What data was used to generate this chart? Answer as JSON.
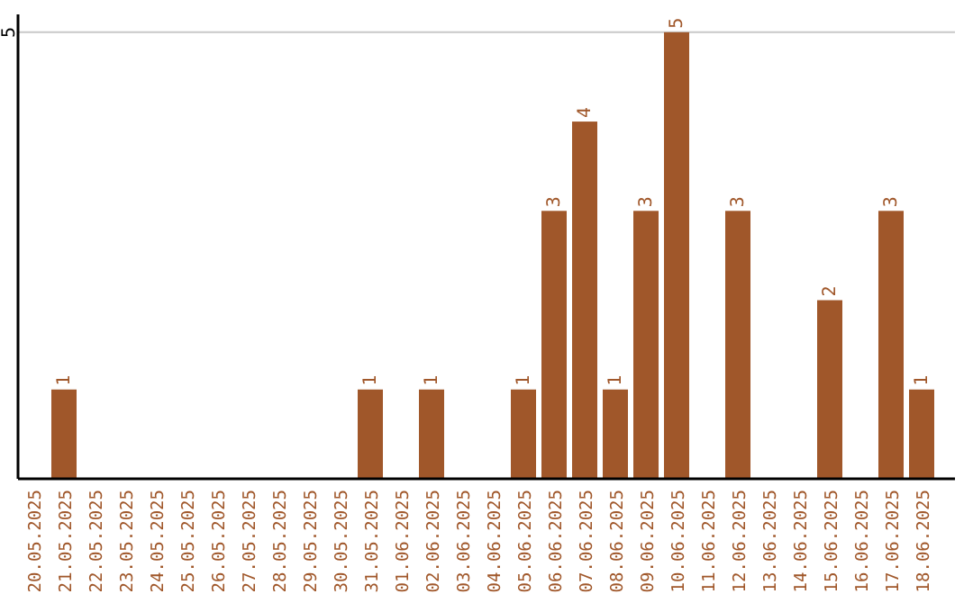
{
  "chart_data": {
    "type": "bar",
    "categories": [
      "20.05.2025",
      "21.05.2025",
      "22.05.2025",
      "23.05.2025",
      "24.05.2025",
      "25.05.2025",
      "26.05.2025",
      "27.05.2025",
      "28.05.2025",
      "29.05.2025",
      "30.05.2025",
      "31.05.2025",
      "01.06.2025",
      "02.06.2025",
      "03.06.2025",
      "04.06.2025",
      "05.06.2025",
      "06.06.2025",
      "07.06.2025",
      "08.06.2025",
      "09.06.2025",
      "10.06.2025",
      "11.06.2025",
      "12.06.2025",
      "13.06.2025",
      "14.06.2025",
      "15.06.2025",
      "16.06.2025",
      "17.06.2025",
      "18.06.2025"
    ],
    "values": [
      0,
      1,
      0,
      0,
      0,
      0,
      0,
      0,
      0,
      0,
      0,
      1,
      0,
      1,
      0,
      0,
      1,
      3,
      4,
      1,
      3,
      5,
      0,
      3,
      0,
      0,
      2,
      0,
      3,
      1
    ],
    "value_labels": [
      null,
      "1",
      null,
      null,
      null,
      null,
      null,
      null,
      null,
      null,
      null,
      "1",
      null,
      "1",
      null,
      null,
      "1",
      "3",
      "4",
      "1",
      "3",
      "5",
      null,
      "3",
      null,
      null,
      "2",
      null,
      "3",
      "1"
    ],
    "color": "#a0572a",
    "ylim": [
      0,
      5.2
    ],
    "yticks": [
      5
    ],
    "grid": "y"
  }
}
